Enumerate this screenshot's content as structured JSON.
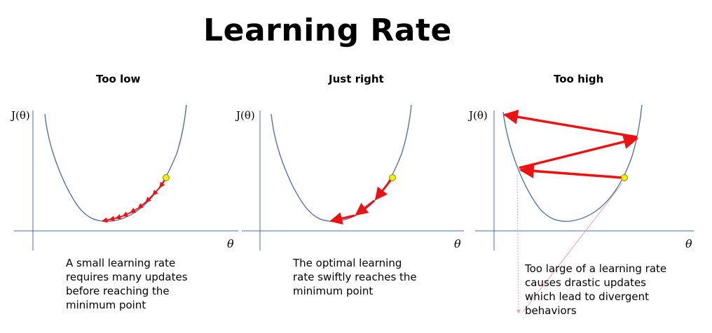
{
  "title": "Learning Rate",
  "panels": [
    {
      "heading": "Too low",
      "y_label": "J(θ)",
      "x_label": "θ",
      "caption": [
        "A small learning rate",
        "requires many updates",
        "before reaching the",
        "minimum point"
      ]
    },
    {
      "heading": "Just right",
      "y_label": "J(θ)",
      "x_label": "θ",
      "caption": [
        "The optimal learning",
        "rate swiftly reaches the",
        "minimum point"
      ]
    },
    {
      "heading": "Too high",
      "y_label": "J(θ)",
      "x_label": "θ",
      "caption": [
        "Too large of a learning rate",
        "causes drastic updates",
        "which lead to divergent",
        "behaviors"
      ]
    }
  ],
  "colors": {
    "curve": "#4a6aa8",
    "axis": "#4a6aa8",
    "arrow": "#ee1111",
    "start_point": "#f0f000"
  }
}
